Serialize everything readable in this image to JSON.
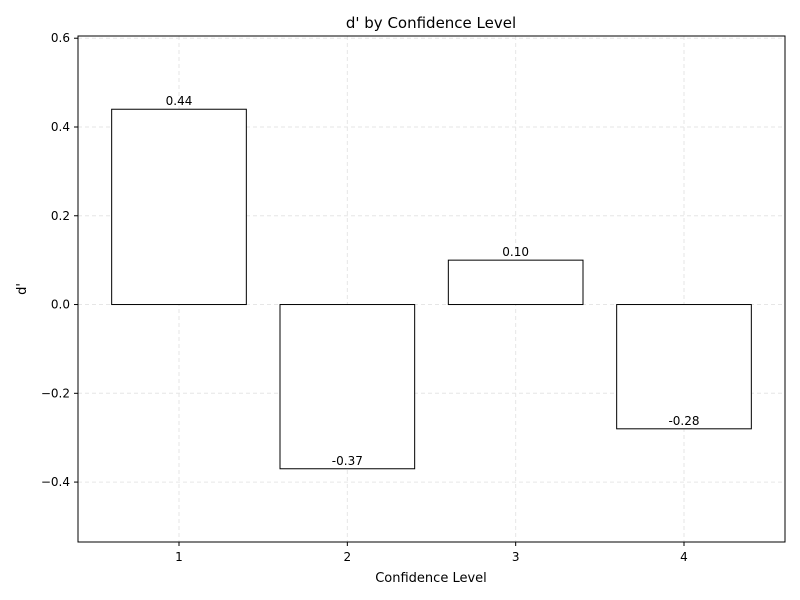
{
  "chart_data": {
    "type": "bar",
    "title": "d' by Confidence Level",
    "xlabel": "Confidence Level",
    "ylabel": "d'",
    "categories": [
      "1",
      "2",
      "3",
      "4"
    ],
    "values": [
      0.44,
      -0.37,
      0.1,
      -0.28
    ],
    "value_labels": [
      "0.44",
      "-0.37",
      "0.10",
      "-0.28"
    ],
    "xlim": [
      0.4,
      4.6
    ],
    "ylim": [
      -0.535,
      0.605
    ],
    "yticks": [
      -0.4,
      -0.2,
      0.0,
      0.2,
      0.4,
      0.6
    ],
    "ytick_labels": [
      "−0.4",
      "−0.2",
      "0.0",
      "0.2",
      "0.4",
      "0.6"
    ],
    "grid": true,
    "bar_fill": "#ffffff",
    "bar_edge": "#000000",
    "grid_color": "#e6e6e6"
  }
}
